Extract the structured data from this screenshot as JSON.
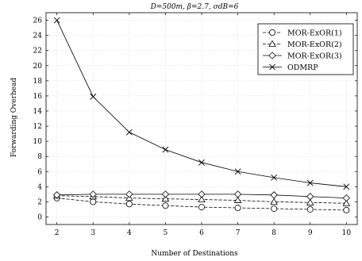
{
  "chart_data": {
    "type": "line",
    "title": "D=500m, β=2.7, σdB=6",
    "xlabel": "Number of Destinations",
    "ylabel": "Forwarding Overhead",
    "x": [
      2,
      3,
      4,
      5,
      6,
      7,
      8,
      9,
      10
    ],
    "xlim": [
      1.7,
      10.3
    ],
    "ylim": [
      -1,
      27
    ],
    "xticks": [
      2,
      3,
      4,
      5,
      6,
      7,
      8,
      9,
      10
    ],
    "yticks": [
      0,
      2,
      4,
      6,
      8,
      10,
      12,
      14,
      16,
      18,
      20,
      22,
      24,
      26
    ],
    "grid": true,
    "legend_position": "top-right",
    "series": [
      {
        "name": "MOR-ExOR(1)",
        "marker": "circle",
        "dash": "dashed",
        "values": [
          2.5,
          2.0,
          1.7,
          1.5,
          1.3,
          1.2,
          1.1,
          1.0,
          0.9
        ]
      },
      {
        "name": "MOR-ExOR(2)",
        "marker": "triangle",
        "dash": "dashed",
        "values": [
          2.8,
          2.7,
          2.5,
          2.4,
          2.3,
          2.2,
          2.0,
          1.9,
          1.8
        ]
      },
      {
        "name": "MOR-ExOR(3)",
        "marker": "diamond",
        "dash": "solid",
        "values": [
          2.9,
          3.0,
          3.0,
          3.0,
          3.0,
          3.0,
          2.9,
          2.7,
          2.5
        ]
      },
      {
        "name": "ODMRP",
        "marker": "x",
        "dash": "solid",
        "values": [
          26.0,
          15.9,
          11.2,
          8.9,
          7.2,
          6.0,
          5.2,
          4.5,
          4.0
        ]
      }
    ]
  }
}
